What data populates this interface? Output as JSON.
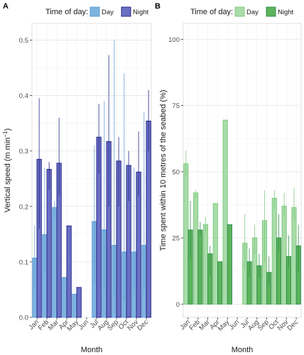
{
  "chart_data": [
    {
      "type": "bar",
      "panel_label": "A",
      "legend_title": "Time of day:",
      "legend_position": "top",
      "ylabel": "Vertical speed (m min",
      "ylabel_sup": "−1",
      "ylabel_close": ")",
      "xlabel": "Month",
      "ylim": [
        0,
        0.53
      ],
      "yticks": [
        "0.0",
        "0.1",
        "0.2",
        "0.3",
        "0.4",
        "0.5"
      ],
      "ytick_values": [
        0,
        0.1,
        0.2,
        0.3,
        0.4,
        0.5
      ],
      "grid": true,
      "categories": [
        "Jan",
        "Feb",
        "Mar",
        "Apr",
        "May",
        "Jun",
        "Jul",
        "Aug",
        "Sep",
        "Oct",
        "Nov",
        "Dec"
      ],
      "series": [
        {
          "name": "Day",
          "color": "#7fb3e0",
          "edge": "#5a9ad2",
          "values": [
            0.107,
            0.149,
            0.198,
            0.072,
            0.042,
            null,
            0.173,
            0.158,
            0.13,
            0.118,
            0.118,
            0.13
          ],
          "error_low": [
            0.05,
            0.08,
            0.18,
            null,
            null,
            null,
            0.06,
            0.05,
            0.04,
            0.03,
            0.05,
            0.05
          ],
          "error_high": [
            0.165,
            0.27,
            0.21,
            null,
            null,
            null,
            0.31,
            0.39,
            0.5,
            0.44,
            0.27,
            0.37
          ]
        },
        {
          "name": "Night",
          "color": "#6a6fc4",
          "edge": "#1a1e80",
          "values": [
            0.285,
            0.267,
            0.278,
            0.165,
            0.054,
            null,
            0.325,
            0.317,
            0.282,
            0.274,
            0.262,
            0.354
          ],
          "error_low": [
            0.16,
            0.23,
            0.22,
            null,
            null,
            null,
            0.26,
            0.2,
            0.2,
            0.21,
            0.22,
            0.3
          ],
          "error_high": [
            0.395,
            0.28,
            0.36,
            null,
            null,
            null,
            0.385,
            0.473,
            0.325,
            0.3,
            0.335,
            0.41
          ]
        }
      ]
    },
    {
      "type": "bar",
      "panel_label": "B",
      "legend_title": "Time of day:",
      "legend_position": "top",
      "ylabel": "Time spent within 10 metres of the seabed (%)",
      "xlabel": "Month",
      "ylim": [
        -5,
        106
      ],
      "yticks": [
        "0",
        "25",
        "50",
        "75",
        "100"
      ],
      "ytick_values": [
        0,
        25,
        50,
        75,
        100
      ],
      "grid": true,
      "categories": [
        "Jan",
        "Feb",
        "Mar",
        "Apr",
        "May",
        "Jun",
        "Jul",
        "Aug",
        "Sep",
        "Oct",
        "Nov",
        "Dec"
      ],
      "series": [
        {
          "name": "Day",
          "color": "#a8dca8",
          "edge": "#7cc67c",
          "values": [
            53,
            42,
            30,
            38,
            69.5,
            null,
            23,
            25,
            31.5,
            40,
            37,
            36.5
          ],
          "error_low": [
            48,
            40,
            27,
            null,
            null,
            null,
            13,
            19,
            16,
            36,
            33,
            32
          ],
          "error_high": [
            58,
            43,
            33,
            null,
            null,
            null,
            34,
            30,
            43,
            43,
            42,
            44
          ]
        },
        {
          "name": "Night",
          "color": "#5bb35b",
          "edge": "#2e8b4a",
          "values": [
            28,
            28,
            19,
            16,
            30,
            null,
            16,
            14.5,
            12,
            25,
            18,
            22
          ],
          "error_low": [
            17,
            26,
            11,
            null,
            null,
            null,
            10,
            10,
            7,
            20,
            14,
            12
          ],
          "error_high": [
            39,
            31,
            22,
            null,
            null,
            null,
            21,
            19,
            18,
            34,
            26,
            30
          ]
        }
      ]
    }
  ]
}
